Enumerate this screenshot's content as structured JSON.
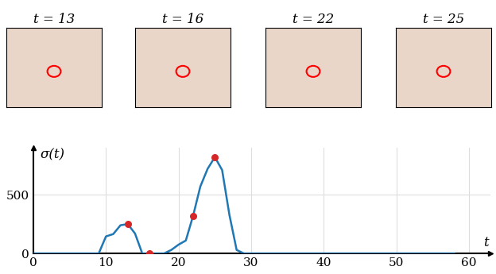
{
  "chart_data": {
    "type": "line",
    "frames": [
      "t = 13",
      "t = 16",
      "t = 22",
      "t = 25"
    ],
    "xlabel": "t",
    "ylabel": "σ(t)",
    "x": [
      0,
      9,
      10,
      11,
      12,
      13,
      14,
      15,
      16,
      17,
      18,
      19,
      20,
      21,
      22,
      23,
      24,
      25,
      26,
      27,
      28,
      29,
      58
    ],
    "series": [
      {
        "color": "#1f77b4",
        "values": [
          0,
          0,
          145,
          165,
          240,
          250,
          170,
          0,
          0,
          0,
          0,
          30,
          75,
          110,
          320,
          570,
          720,
          820,
          710,
          330,
          30,
          0,
          0
        ]
      }
    ],
    "highlight_points": {
      "color": "#d62728",
      "x": [
        13,
        16,
        22,
        25
      ],
      "values": [
        250,
        0,
        320,
        820
      ]
    },
    "xlim": [
      0,
      63
    ],
    "ylim": [
      0,
      900
    ],
    "xticks": [
      0,
      10,
      20,
      30,
      40,
      50,
      60
    ],
    "yticks": [
      0,
      500
    ],
    "grid": true
  }
}
